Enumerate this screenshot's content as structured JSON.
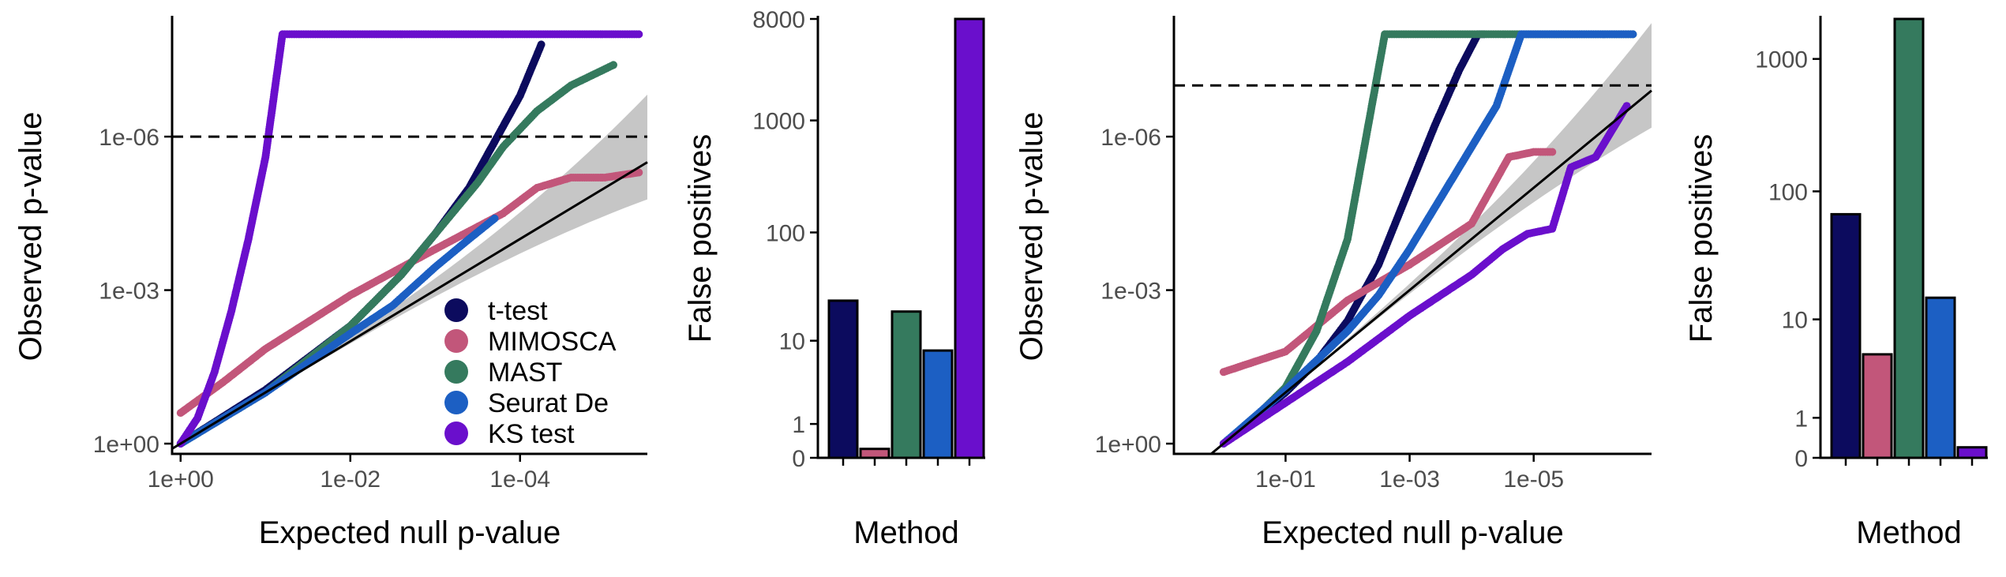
{
  "colors": {
    "t-test": "#0c0b5e",
    "MIMOSCA": "#c2567a",
    "MAST": "#357a5e",
    "Seurat De": "#1c5fc3",
    "KS test": "#6a0fcc",
    "band": "#c6c6c6",
    "axis": "#000000"
  },
  "legend": {
    "items": [
      "t-test",
      "MIMOSCA",
      "MAST",
      "Seurat De",
      "KS test"
    ]
  },
  "chart_data": [
    {
      "id": "qq-left",
      "type": "scatter",
      "xlabel": "Expected null p-value",
      "ylabel": "Observed p-value",
      "x_scale": "-log10",
      "y_scale": "-log10",
      "x_ticks": [
        "1e+00",
        "1e-02",
        "1e-04"
      ],
      "y_ticks": [
        "1e+00",
        "1e-03",
        "1e-06"
      ],
      "xlim_neglog10": [
        -0.1,
        5.5
      ],
      "ylim_neglog10": [
        -0.2,
        8.3
      ],
      "threshold_line": "1e-06",
      "reference_line": "y = x",
      "confidence_band": true,
      "series": [
        {
          "name": "t-test",
          "x_neglog10": [
            0,
            1,
            2,
            2.6,
            3,
            3.4,
            3.6,
            3.8,
            4.0,
            4.1,
            4.2,
            4.25
          ],
          "y_neglog10": [
            0,
            1.05,
            2.3,
            3.3,
            4.1,
            5.0,
            5.6,
            6.2,
            6.8,
            7.2,
            7.6,
            7.8
          ]
        },
        {
          "name": "MIMOSCA",
          "x_neglog10": [
            0,
            0.5,
            1,
            2,
            3,
            3.8,
            4.2,
            4.6,
            5.0,
            5.4
          ],
          "y_neglog10": [
            0.6,
            1.2,
            1.85,
            2.9,
            3.8,
            4.5,
            5.0,
            5.2,
            5.2,
            5.3
          ]
        },
        {
          "name": "MAST",
          "x_neglog10": [
            0,
            1,
            2,
            2.6,
            3.1,
            3.5,
            3.8,
            4.2,
            4.6,
            5.1
          ],
          "y_neglog10": [
            0,
            1.0,
            2.3,
            3.3,
            4.3,
            5.1,
            5.8,
            6.5,
            7.0,
            7.4
          ]
        },
        {
          "name": "Seurat De",
          "x_neglog10": [
            0,
            1,
            2,
            2.5,
            3,
            3.4,
            3.7
          ],
          "y_neglog10": [
            0,
            1.0,
            2.15,
            2.7,
            3.45,
            4.0,
            4.4
          ]
        },
        {
          "name": "KS test",
          "x_neglog10": [
            0,
            0.2,
            0.4,
            0.6,
            0.8,
            1.0,
            1.2,
            4.0,
            4.6,
            5.0,
            5.1,
            5.4
          ],
          "y_neglog10": [
            0,
            0.5,
            1.4,
            2.6,
            4.0,
            5.6,
            8.0,
            8.0,
            8.0,
            8.0,
            8.0,
            8.0
          ]
        }
      ]
    },
    {
      "id": "bar-left",
      "type": "bar",
      "xlabel": "Method",
      "ylabel": "False positives",
      "y_scale": "pseudo-log10",
      "y_ticks": [
        "0",
        "1",
        "10",
        "100",
        "1000",
        "8000"
      ],
      "categories": [
        "t-test",
        "MIMOSCA",
        "MAST",
        "Seurat De",
        "KS test"
      ],
      "values": [
        24,
        0.2,
        19,
        8,
        8000
      ]
    },
    {
      "id": "qq-right",
      "type": "scatter",
      "xlabel": "Expected null p-value",
      "ylabel": "Observed p-value",
      "x_scale": "-log10",
      "y_scale": "-log10",
      "x_ticks": [
        "1e-01",
        "1e-03",
        "1e-05"
      ],
      "y_ticks": [
        "1e+00",
        "1e-03",
        "1e-06"
      ],
      "xlim_neglog10": [
        -0.8,
        6.9
      ],
      "ylim_neglog10": [
        -0.2,
        8.3
      ],
      "threshold_line": "1e-07",
      "reference_line": "y = x",
      "confidence_band": true,
      "series": [
        {
          "name": "t-test",
          "x_neglog10": [
            0,
            0.5,
            1,
            1.5,
            2,
            2.5,
            3,
            3.4,
            3.8,
            4.1,
            4.2
          ],
          "y_neglog10": [
            0,
            0.5,
            1.0,
            1.6,
            2.4,
            3.5,
            5.0,
            6.2,
            7.3,
            8.0,
            8.0
          ]
        },
        {
          "name": "MIMOSCA",
          "x_neglog10": [
            0,
            0.5,
            1,
            2,
            3,
            4,
            4.6,
            5.0,
            5.3
          ],
          "y_neglog10": [
            1.4,
            1.6,
            1.8,
            2.8,
            3.5,
            4.3,
            5.6,
            5.7,
            5.7
          ]
        },
        {
          "name": "MAST",
          "x_neglog10": [
            0,
            0.5,
            1,
            1.5,
            2,
            2.3,
            2.6,
            5.0,
            6.0,
            6.6
          ],
          "y_neglog10": [
            0,
            0.5,
            1.1,
            2.2,
            4.0,
            6.0,
            8.0,
            8.0,
            8.0,
            8.0
          ]
        },
        {
          "name": "Seurat De",
          "x_neglog10": [
            0,
            1,
            2,
            2.5,
            3,
            3.5,
            4,
            4.4,
            4.8,
            6.0,
            6.6
          ],
          "y_neglog10": [
            0,
            1.05,
            2.2,
            2.9,
            3.8,
            4.8,
            5.8,
            6.6,
            8.0,
            8.0,
            8.0
          ]
        },
        {
          "name": "KS test",
          "x_neglog10": [
            0,
            1,
            2,
            3,
            4,
            4.5,
            4.9,
            5.3,
            5.6,
            6.0,
            6.5
          ],
          "y_neglog10": [
            0,
            0.8,
            1.6,
            2.5,
            3.3,
            3.8,
            4.1,
            4.2,
            5.4,
            5.6,
            6.6
          ]
        }
      ]
    },
    {
      "id": "bar-right",
      "type": "bar",
      "xlabel": "Method",
      "ylabel": "False positives",
      "y_scale": "pseudo-log10",
      "y_ticks": [
        "0",
        "1",
        "10",
        "100",
        "1000"
      ],
      "categories": [
        "t-test",
        "MIMOSCA",
        "MAST",
        "Seurat De",
        "KS test"
      ],
      "values": [
        67,
        5,
        2000,
        15,
        0.2
      ]
    }
  ]
}
